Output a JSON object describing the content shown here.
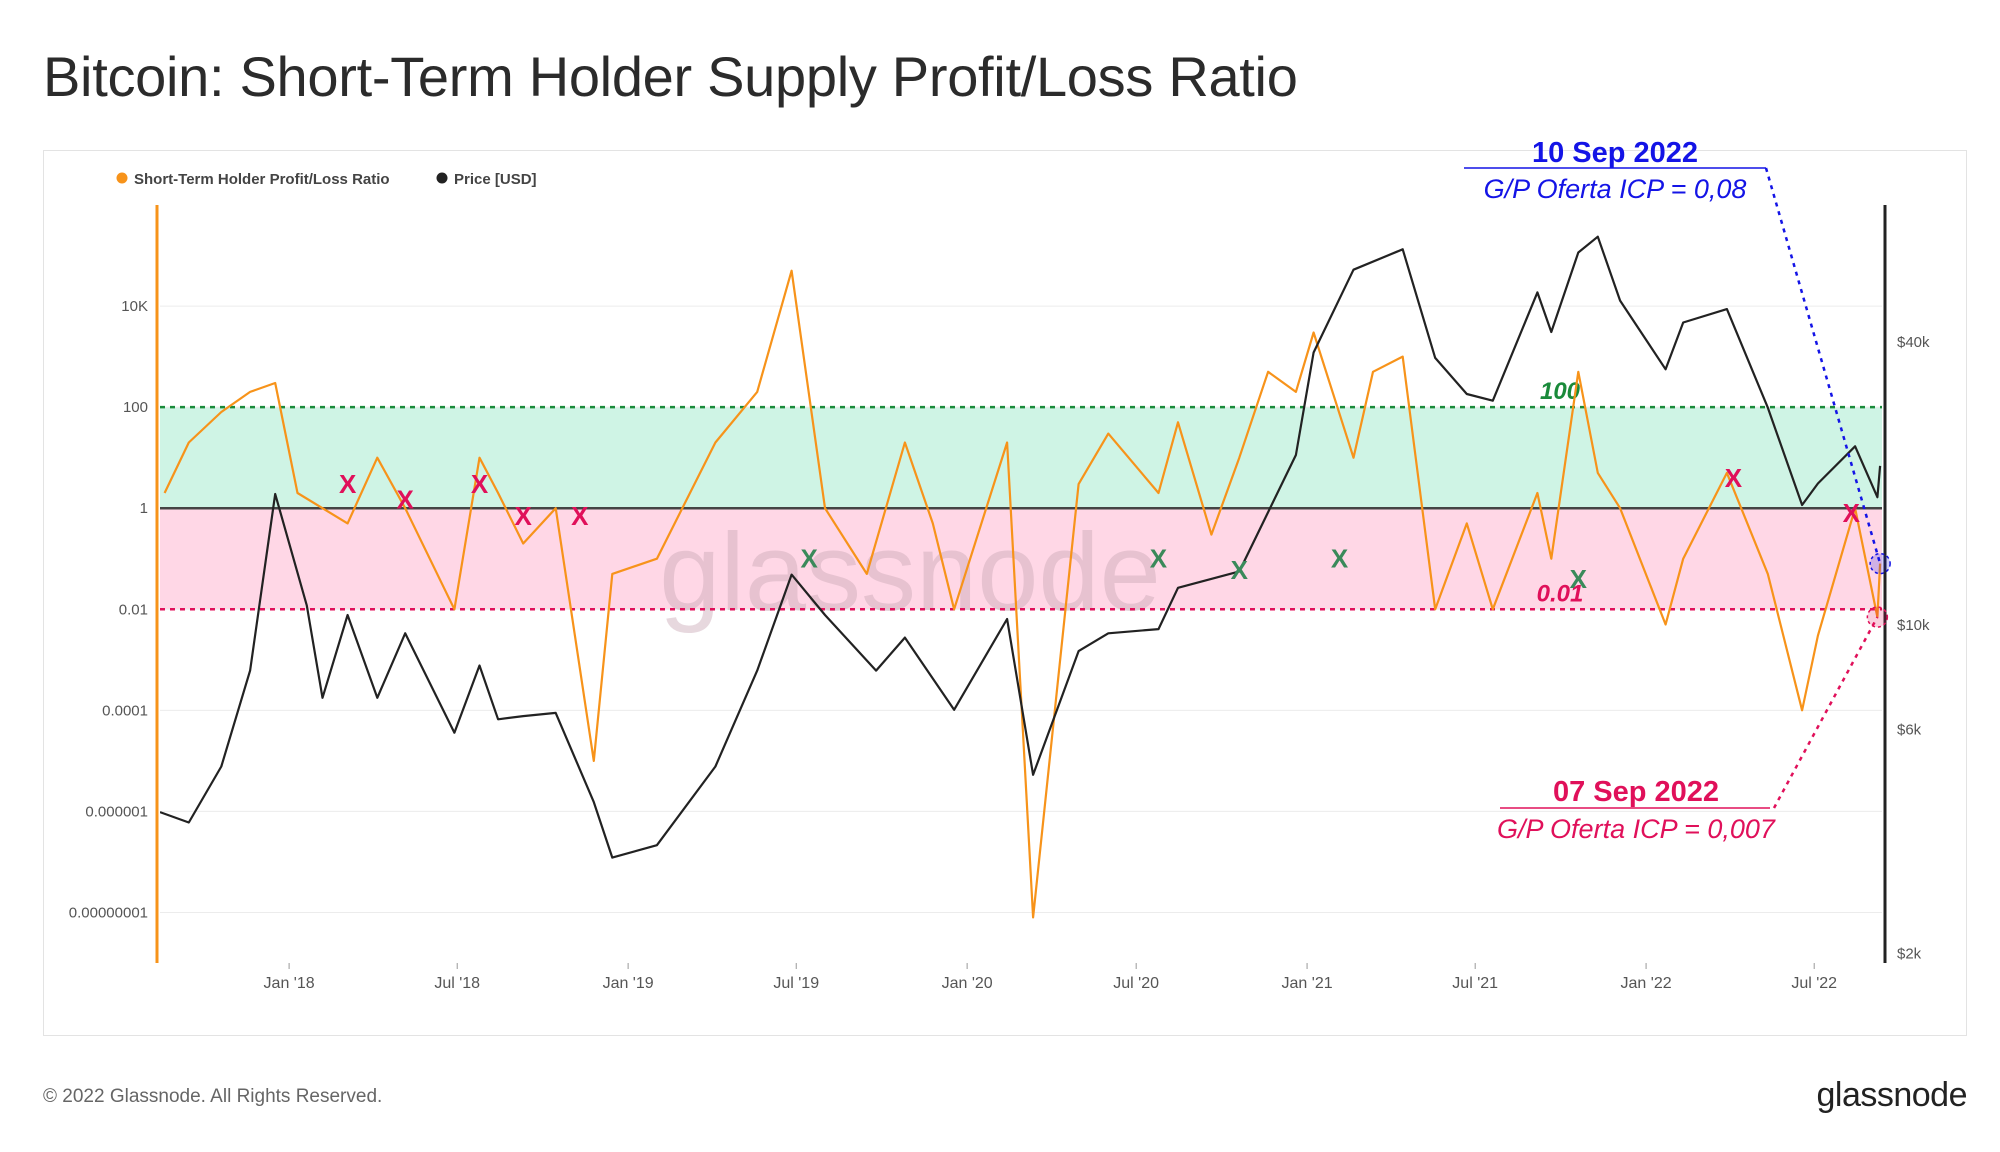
{
  "page": {
    "title": "Bitcoin: Short-Term Holder Supply Profit/Loss Ratio",
    "footer_copyright": "© 2022 Glassnode. All Rights Reserved.",
    "brand": "glassnode",
    "watermark": "glassnode"
  },
  "colors": {
    "ratio_series": "#f7931a",
    "price_series": "#222222",
    "profit_band": "#bff0dc",
    "loss_band": "#ffc9dd",
    "line_100": "#1a8a3a",
    "line_001": "#e0105a",
    "annot_blue": "#1414e6",
    "annot_red": "#e0105a",
    "x_red": "#e0105a",
    "x_green": "#3a8a5a"
  },
  "chart_data": {
    "type": "line",
    "title": "Bitcoin: Short-Term Holder Supply Profit/Loss Ratio",
    "legend": [
      {
        "label": "Short-Term Holder Profit/Loss Ratio",
        "color": "#f7931a"
      },
      {
        "label": "Price [USD]",
        "color": "#222222"
      }
    ],
    "legend_position": "top-left",
    "x_ticks": [
      "Jan '18",
      "Jul '18",
      "Jan '19",
      "Jul '19",
      "Jan '20",
      "Jul '20",
      "Jan '21",
      "Jul '21",
      "Jan '22",
      "Jul '22"
    ],
    "x_tick_dates": [
      "2018-01-01",
      "2018-07-01",
      "2019-01-01",
      "2019-07-01",
      "2020-01-01",
      "2020-07-01",
      "2021-01-01",
      "2021-07-01",
      "2022-01-01",
      "2022-07-01"
    ],
    "x_range": [
      "2017-08-15",
      "2022-09-12"
    ],
    "y_left": {
      "scale": "log",
      "range": [
        1e-09,
        1000000
      ],
      "ticks": [
        {
          "value": 10000,
          "label": "10K"
        },
        {
          "value": 100,
          "label": "100"
        },
        {
          "value": 1,
          "label": "1"
        },
        {
          "value": 0.01,
          "label": "0.01"
        },
        {
          "value": 0.0001,
          "label": "0.0001"
        },
        {
          "value": 1e-06,
          "label": "0.000001"
        },
        {
          "value": 1e-08,
          "label": "0.00000001"
        }
      ]
    },
    "y_right": {
      "scale": "log",
      "ticks": [
        {
          "value": 40000,
          "label": "$40k"
        },
        {
          "value": 10000,
          "label": "$10k"
        },
        {
          "value": 6000,
          "label": "$6k"
        },
        {
          "value": 2000,
          "label": "$2k"
        }
      ]
    },
    "bands": [
      {
        "from": 1,
        "to": 100,
        "color": "#bff0dc"
      },
      {
        "from": 0.01,
        "to": 1,
        "color": "#ffc9dd"
      }
    ],
    "reference_lines": [
      {
        "value": 100,
        "label": "100",
        "color": "#1a8a3a",
        "style": "dotted"
      },
      {
        "value": 1,
        "color": "#444444",
        "style": "solid"
      },
      {
        "value": 0.01,
        "label": "0.01",
        "color": "#e0105a",
        "style": "dotted"
      }
    ],
    "series": [
      {
        "name": "Short-Term Holder Profit/Loss Ratio",
        "axis": "left",
        "x": [
          "2017-08-20",
          "2017-09-15",
          "2017-10-20",
          "2017-11-20",
          "2017-12-17",
          "2018-01-10",
          "2018-02-06",
          "2018-03-05",
          "2018-04-06",
          "2018-05-06",
          "2018-06-28",
          "2018-07-25",
          "2018-08-14",
          "2018-09-10",
          "2018-10-15",
          "2018-11-25",
          "2018-12-15",
          "2019-02-01",
          "2019-04-05",
          "2019-05-20",
          "2019-06-26",
          "2019-08-01",
          "2019-09-15",
          "2019-10-26",
          "2019-11-25",
          "2019-12-18",
          "2020-02-13",
          "2020-03-12",
          "2020-04-30",
          "2020-06-01",
          "2020-07-25",
          "2020-08-15",
          "2020-09-20",
          "2020-10-20",
          "2020-11-20",
          "2020-12-20",
          "2021-01-08",
          "2021-02-20",
          "2021-03-13",
          "2021-04-14",
          "2021-05-19",
          "2021-06-22",
          "2021-07-20",
          "2021-09-06",
          "2021-09-21",
          "2021-10-20",
          "2021-11-10",
          "2021-12-04",
          "2022-01-22",
          "2022-02-10",
          "2022-03-29",
          "2022-05-12",
          "2022-06-18",
          "2022-07-05",
          "2022-08-14",
          "2022-09-07",
          "2022-09-10"
        ],
        "y": [
          2,
          20,
          80,
          200,
          300,
          2,
          1,
          0.5,
          10,
          1,
          0.01,
          10,
          2,
          0.2,
          1,
          1e-05,
          0.05,
          0.1,
          20,
          200,
          50000,
          1,
          0.05,
          20,
          0.5,
          0.01,
          20,
          8e-09,
          3,
          30,
          2,
          50,
          0.3,
          10,
          500,
          200,
          3000,
          10,
          500,
          1000,
          0.01,
          0.5,
          0.01,
          2,
          0.1,
          500,
          5,
          1,
          0.005,
          0.1,
          5,
          0.05,
          0.0001,
          0.003,
          1,
          0.007,
          0.08
        ]
      },
      {
        "name": "Price [USD]",
        "axis": "right",
        "x": [
          "2017-08-15",
          "2017-09-15",
          "2017-10-20",
          "2017-11-20",
          "2017-12-17",
          "2018-01-20",
          "2018-02-06",
          "2018-03-05",
          "2018-04-06",
          "2018-05-06",
          "2018-06-28",
          "2018-07-25",
          "2018-08-14",
          "2018-09-10",
          "2018-10-15",
          "2018-11-25",
          "2018-12-15",
          "2019-02-01",
          "2019-04-05",
          "2019-05-20",
          "2019-06-26",
          "2019-08-01",
          "2019-09-25",
          "2019-10-26",
          "2019-12-18",
          "2020-02-13",
          "2020-03-12",
          "2020-04-30",
          "2020-06-01",
          "2020-07-25",
          "2020-08-15",
          "2020-10-20",
          "2020-12-20",
          "2021-01-08",
          "2021-02-20",
          "2021-04-14",
          "2021-05-19",
          "2021-06-22",
          "2021-07-20",
          "2021-09-06",
          "2021-09-21",
          "2021-10-20",
          "2021-11-10",
          "2021-12-04",
          "2022-01-22",
          "2022-02-10",
          "2022-03-29",
          "2022-05-12",
          "2022-06-18",
          "2022-07-05",
          "2022-08-14",
          "2022-09-07",
          "2022-09-10"
        ],
        "y": [
          4000,
          3800,
          5000,
          8000,
          19000,
          11000,
          7000,
          10500,
          7000,
          9600,
          5900,
          8200,
          6300,
          6400,
          6500,
          4200,
          3200,
          3400,
          5000,
          8000,
          12800,
          10500,
          8000,
          9400,
          6600,
          10300,
          4800,
          8800,
          9600,
          9800,
          12000,
          13000,
          23000,
          38000,
          57000,
          63000,
          37000,
          31000,
          30000,
          51000,
          42000,
          62000,
          67000,
          49000,
          35000,
          44000,
          47000,
          29000,
          18000,
          20000,
          24000,
          18700,
          21800
        ]
      }
    ],
    "markers": [
      {
        "label": "X",
        "color": "#e0105a",
        "x": "2018-03-05",
        "y": 3
      },
      {
        "label": "X",
        "color": "#e0105a",
        "x": "2018-05-06",
        "y": 1.5
      },
      {
        "label": "X",
        "color": "#e0105a",
        "x": "2018-07-25",
        "y": 3
      },
      {
        "label": "X",
        "color": "#e0105a",
        "x": "2018-09-10",
        "y": 0.7
      },
      {
        "label": "X",
        "color": "#e0105a",
        "x": "2018-11-10",
        "y": 0.7
      },
      {
        "label": "X",
        "color": "#3a8a5a",
        "x": "2019-07-15",
        "y": 0.1
      },
      {
        "label": "X",
        "color": "#3a8a5a",
        "x": "2020-07-25",
        "y": 0.1
      },
      {
        "label": "X",
        "color": "#3a8a5a",
        "x": "2020-10-20",
        "y": 0.06
      },
      {
        "label": "X",
        "color": "#3a8a5a",
        "x": "2021-02-05",
        "y": 0.1
      },
      {
        "label": "X",
        "color": "#3a8a5a",
        "x": "2021-10-20",
        "y": 0.04
      },
      {
        "label": "X",
        "color": "#e0105a",
        "x": "2022-04-05",
        "y": 4
      },
      {
        "label": "X",
        "color": "#e0105a",
        "x": "2022-08-10",
        "y": 0.8
      }
    ],
    "annotations": [
      {
        "date_label": "10 Sep 2022",
        "text": "G/P Oferta ICP = 0,08",
        "color": "#1414e6",
        "x": "2022-09-10",
        "value": 0.08
      },
      {
        "date_label": "07 Sep 2022",
        "text": "G/P Oferta ICP = 0,007",
        "color": "#e0105a",
        "x": "2022-09-07",
        "value": 0.007
      }
    ]
  }
}
